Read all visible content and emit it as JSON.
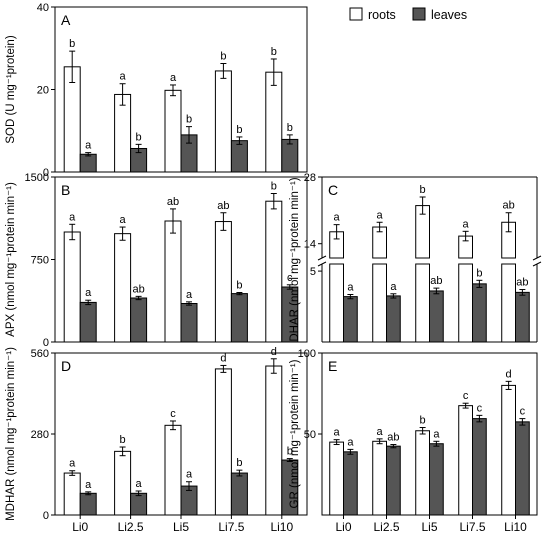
{
  "colors": {
    "roots": "#ffffff",
    "leaves": "#555555"
  },
  "chart_data": [
    {
      "id": "A",
      "type": "bar",
      "panel_label": "A",
      "ylabel": "SOD (U mg⁻¹protein)",
      "ylim": [
        0,
        40
      ],
      "yticks": [
        "0",
        "20",
        "40"
      ],
      "categories": [
        "Li0",
        "Li2.5",
        "Li5",
        "Li7.5",
        "Li10"
      ],
      "show_xticklabels": false,
      "legend": {
        "position": "top-right",
        "entries": [
          "roots",
          "leaves"
        ]
      },
      "series": [
        {
          "name": "roots",
          "values": [
            25.5,
            18.8,
            19.8,
            24.5,
            24.2
          ],
          "errors": [
            3.8,
            2.6,
            1.3,
            1.8,
            3.2
          ],
          "letters": [
            "b",
            "a",
            "a",
            "b",
            "b"
          ]
        },
        {
          "name": "leaves",
          "values": [
            4.3,
            5.7,
            9.0,
            7.6,
            7.9
          ],
          "errors": [
            0.4,
            1.0,
            2.0,
            0.9,
            1.1
          ],
          "letters": [
            "a",
            "b",
            "b",
            "b",
            "b"
          ]
        }
      ]
    },
    {
      "id": "B",
      "type": "bar",
      "panel_label": "B",
      "ylabel": "APX (nmol mg⁻¹protein min⁻¹)",
      "ylim": [
        0,
        1500
      ],
      "yticks": [
        "0",
        "750",
        "1500"
      ],
      "categories": [
        "Li0",
        "Li2.5",
        "Li5",
        "Li7.5",
        "Li10"
      ],
      "show_xticklabels": false,
      "series": [
        {
          "name": "roots",
          "values": [
            1000,
            985,
            1100,
            1095,
            1280
          ],
          "errors": [
            70,
            60,
            110,
            80,
            70
          ],
          "letters": [
            "a",
            "a",
            "ab",
            "ab",
            "b"
          ]
        },
        {
          "name": "leaves",
          "values": [
            360,
            400,
            350,
            440,
            500
          ],
          "errors": [
            20,
            15,
            15,
            10,
            20
          ],
          "letters": [
            "a",
            "ab",
            "a",
            "b",
            "c"
          ]
        }
      ]
    },
    {
      "id": "C",
      "type": "bar",
      "panel_label": "C",
      "ylabel": "DHAR (nmol mg⁻¹protein min⁻¹)",
      "broken_axis": true,
      "ylim_upper": [
        11,
        28
      ],
      "yticks_upper": [
        "14",
        "28"
      ],
      "ylim_lower": [
        0,
        5.5
      ],
      "yticks_lower": [
        "5"
      ],
      "categories": [
        "Li0",
        "Li2.5",
        "Li5",
        "Li7.5",
        "Li10"
      ],
      "show_xticklabels": false,
      "series": [
        {
          "name": "roots",
          "values": [
            16.5,
            17.5,
            22.0,
            15.6,
            18.5
          ],
          "errors": [
            1.5,
            1.0,
            1.8,
            1.0,
            2.0
          ],
          "letters": [
            "a",
            "a",
            "b",
            "a",
            "ab"
          ]
        },
        {
          "name": "leaves",
          "values": [
            3.2,
            3.25,
            3.6,
            4.1,
            3.5
          ],
          "errors": [
            0.15,
            0.15,
            0.2,
            0.25,
            0.2
          ],
          "letters": [
            "a",
            "a",
            "ab",
            "b",
            "ab"
          ]
        }
      ]
    },
    {
      "id": "D",
      "type": "bar",
      "panel_label": "D",
      "ylabel": "MDHAR (nmol mg⁻¹protein min⁻¹)",
      "ylim": [
        0,
        560
      ],
      "yticks": [
        "0",
        "280",
        "560"
      ],
      "categories": [
        "Li0",
        "Li2.5",
        "Li5",
        "Li7.5",
        "Li10"
      ],
      "show_xticklabels": true,
      "series": [
        {
          "name": "roots",
          "values": [
            145,
            220,
            310,
            505,
            515
          ],
          "errors": [
            8,
            15,
            15,
            12,
            25
          ],
          "letters": [
            "a",
            "b",
            "c",
            "d",
            "d"
          ]
        },
        {
          "name": "leaves",
          "values": [
            75,
            75,
            100,
            145,
            190
          ],
          "errors": [
            5,
            8,
            15,
            10,
            5
          ],
          "letters": [
            "a",
            "a",
            "a",
            "b",
            "b"
          ]
        }
      ]
    },
    {
      "id": "E",
      "type": "bar",
      "panel_label": "E",
      "ylabel": "GR (nmol mg⁻¹protein min⁻¹)",
      "ylim": [
        0,
        100
      ],
      "yticks": [
        "50",
        "100"
      ],
      "categories": [
        "Li0",
        "Li2.5",
        "Li5",
        "Li7.5",
        "Li10"
      ],
      "show_xticklabels": true,
      "series": [
        {
          "name": "roots",
          "values": [
            45,
            45.5,
            52,
            67.5,
            80
          ],
          "errors": [
            1.5,
            1.5,
            2.0,
            1.5,
            2.5
          ],
          "letters": [
            "a",
            "a",
            "b",
            "c",
            "d"
          ]
        },
        {
          "name": "leaves",
          "values": [
            39,
            42.5,
            44,
            59.5,
            57.5
          ],
          "errors": [
            1.5,
            1.0,
            1.5,
            2.0,
            2.0
          ],
          "letters": [
            "a",
            "ab",
            "a",
            "c",
            "c"
          ]
        }
      ]
    }
  ]
}
